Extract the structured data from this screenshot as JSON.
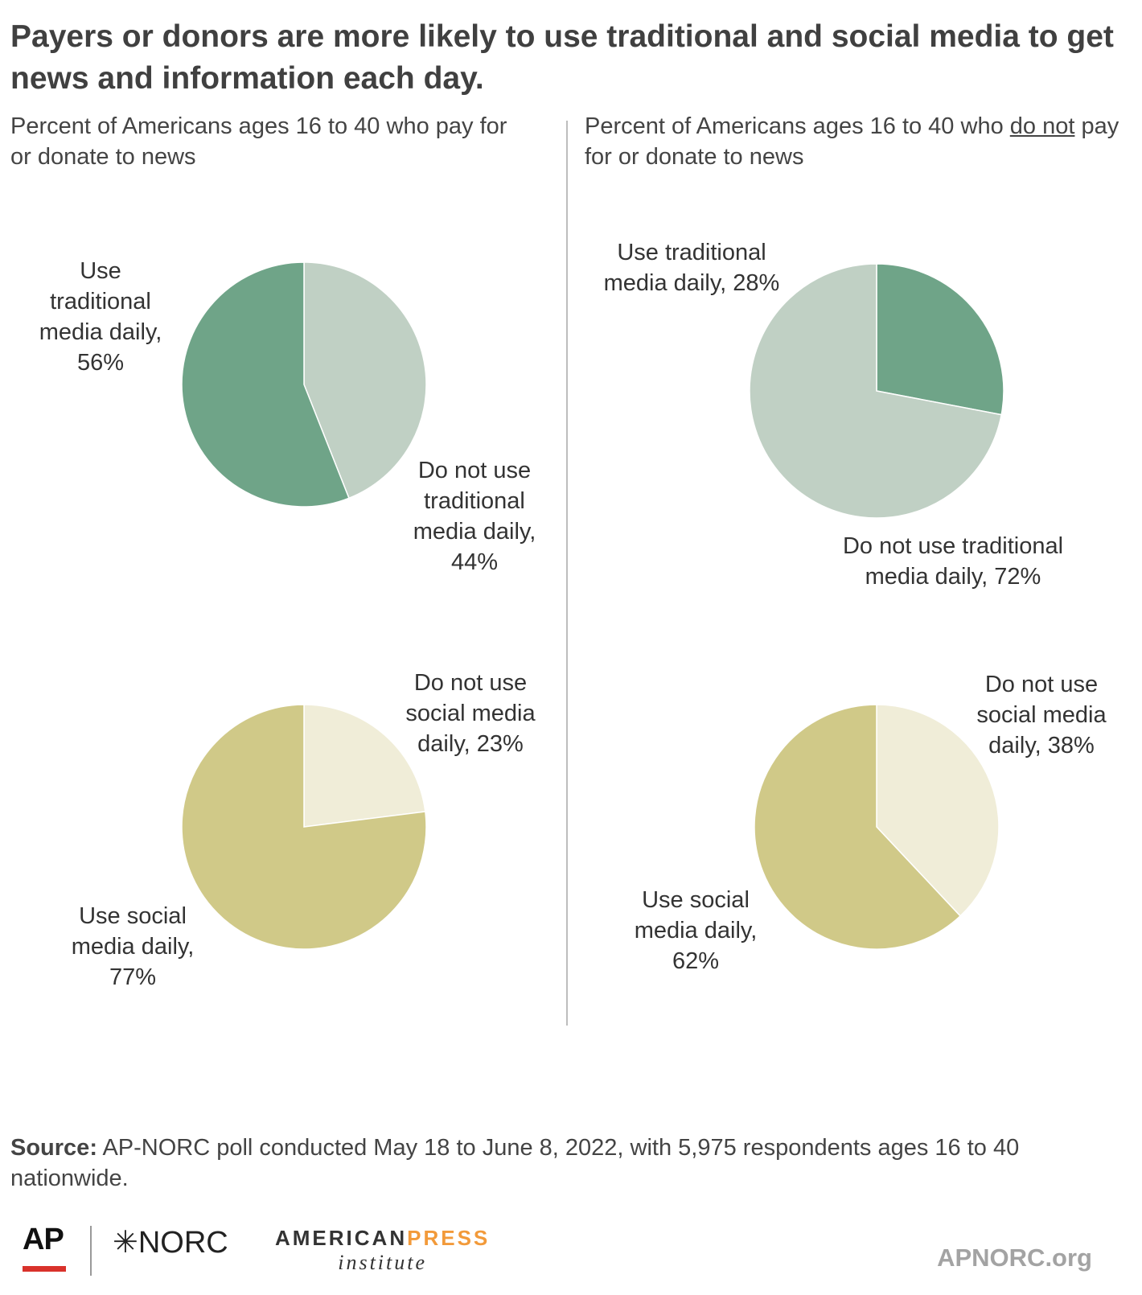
{
  "title": "Payers or donors are more likely to use traditional and social media to get news and information each day.",
  "panels": [
    {
      "subtitle": "Percent of Americans ages 16 to 40 who pay for or donate to news"
    },
    {
      "subtitle_before": "Percent of Americans ages 16 to 40 who ",
      "subtitle_emph": "do not",
      "subtitle_after": " pay for or donate to news"
    }
  ],
  "chart_data": [
    {
      "type": "pie",
      "panel": "pay or donate",
      "slices": [
        {
          "label": "Use traditional media daily",
          "value": 56,
          "color": "#6fa488"
        },
        {
          "label": "Do not use traditional media daily",
          "value": 44,
          "color": "#c0d0c4"
        }
      ]
    },
    {
      "type": "pie",
      "panel": "do not pay or donate",
      "slices": [
        {
          "label": "Use traditional media daily",
          "value": 28,
          "color": "#6fa488"
        },
        {
          "label": "Do not use traditional media daily",
          "value": 72,
          "color": "#c0d0c4"
        }
      ]
    },
    {
      "type": "pie",
      "panel": "pay or donate",
      "slices": [
        {
          "label": "Use social media daily",
          "value": 77,
          "color": "#d0c988"
        },
        {
          "label": "Do not use social media daily",
          "value": 23,
          "color": "#f0edd8"
        }
      ]
    },
    {
      "type": "pie",
      "panel": "do not pay or donate",
      "slices": [
        {
          "label": "Use social media daily",
          "value": 62,
          "color": "#d0c988"
        },
        {
          "label": "Do not use social media daily",
          "value": 38,
          "color": "#f0edd8"
        }
      ]
    }
  ],
  "labels": {
    "c1_use": [
      "Use",
      "traditional",
      "media daily,",
      "56%"
    ],
    "c1_not": [
      "Do not use",
      "traditional",
      "media daily,",
      "44%"
    ],
    "c2_use": [
      "Use traditional",
      "media daily, 28%"
    ],
    "c2_not": [
      "Do not use traditional",
      "media daily, 72%"
    ],
    "c3_use": [
      "Use social",
      "media daily,",
      "77%"
    ],
    "c3_not": [
      "Do not use",
      "social media",
      "daily, 23%"
    ],
    "c4_use": [
      "Use social",
      "media daily,",
      "62%"
    ],
    "c4_not": [
      "Do not use",
      "social media",
      "daily, 38%"
    ]
  },
  "source": {
    "label": "Source:",
    "text": " AP-NORC poll conducted May 18 to June 8, 2022, with 5,975 respondents ages 16 to 40 nationwide."
  },
  "footer": {
    "ap": "AP",
    "norc": "✳NORC",
    "api_a": "AMERICAN",
    "api_b": "PRESS",
    "api_c": "institute",
    "site": "APNORC.org"
  }
}
